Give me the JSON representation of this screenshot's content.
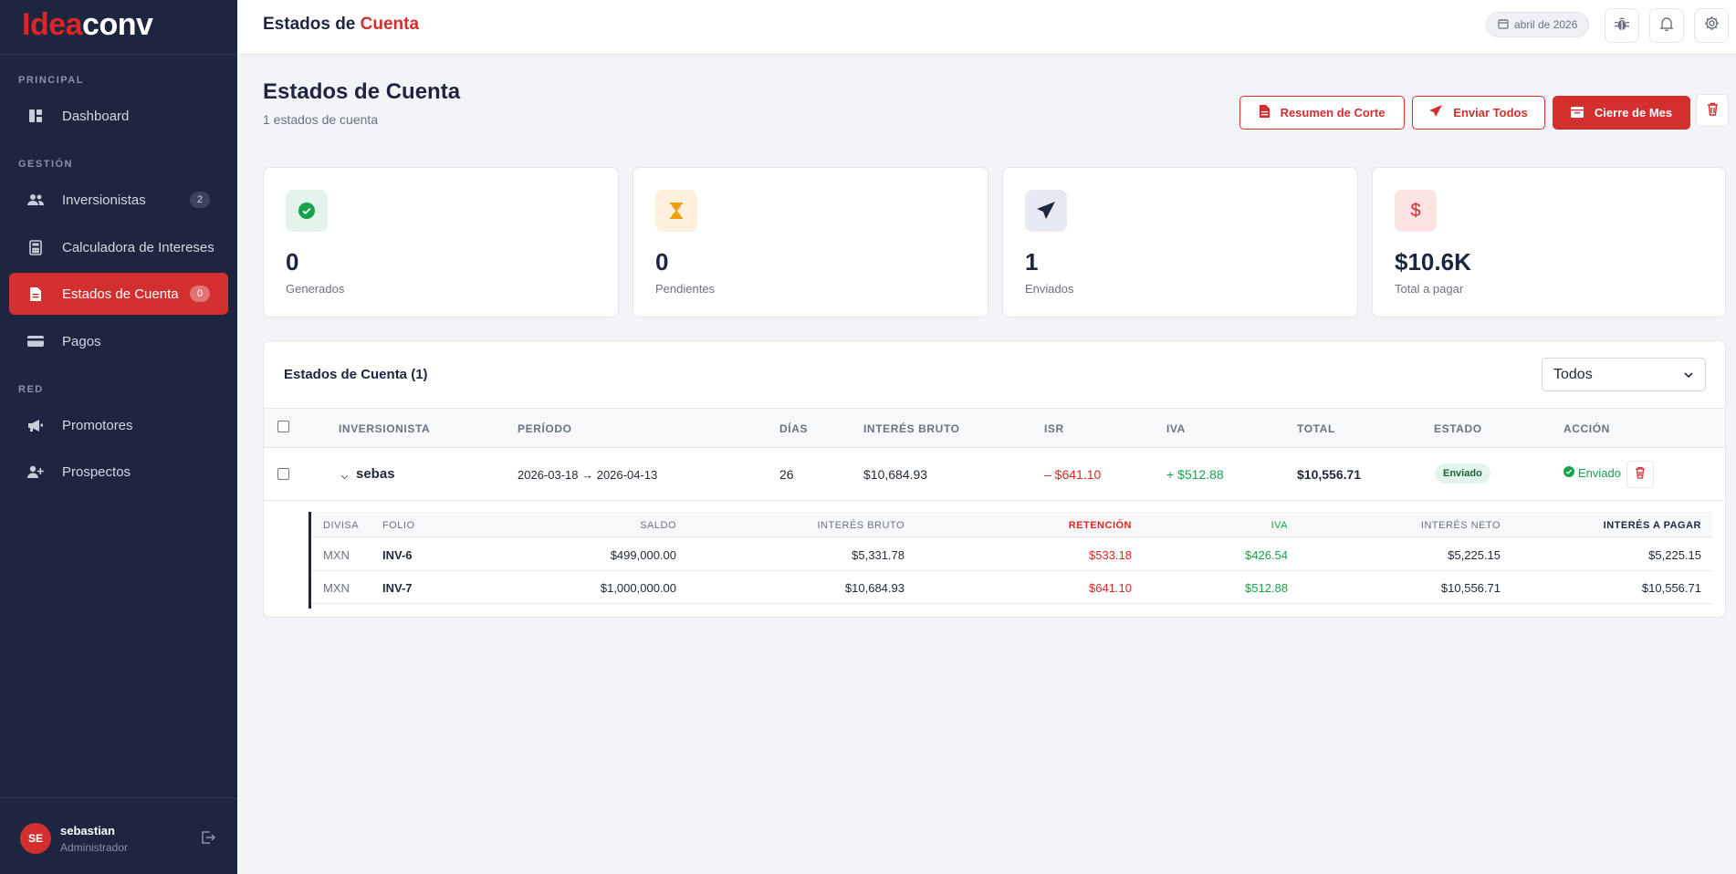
{
  "brand": {
    "part1": "Idea",
    "part2": "conv"
  },
  "sidebar": {
    "sections": [
      "PRINCIPAL",
      "GESTIÓN",
      "RED"
    ],
    "items": [
      {
        "label": "Dashboard",
        "icon": "dashboard-icon"
      },
      {
        "label": "Inversionistas",
        "icon": "users-icon",
        "badge": "2"
      },
      {
        "label": "Calculadora de Intereses",
        "icon": "calculator-icon"
      },
      {
        "label": "Estados de Cuenta",
        "icon": "document-icon",
        "badge": "0",
        "active": true
      },
      {
        "label": "Pagos",
        "icon": "card-icon"
      },
      {
        "label": "Promotores",
        "icon": "megaphone-icon"
      },
      {
        "label": "Prospectos",
        "icon": "user-plus-icon"
      }
    ],
    "user": {
      "initials": "SE",
      "name": "sebastian",
      "role": "Administrador"
    }
  },
  "topbar": {
    "title_part1": "Estados de ",
    "title_part2": "Cuenta",
    "date": "abril de 2026"
  },
  "header": {
    "title": "Estados de Cuenta",
    "subtitle": "1 estados de cuenta",
    "buttons": {
      "resumen": "Resumen de Corte",
      "enviar": "Enviar Todos",
      "cierre": "Cierre de Mes"
    }
  },
  "stats": [
    {
      "value": "0",
      "label": "Generados",
      "color": "#16a34a"
    },
    {
      "value": "0",
      "label": "Pendientes",
      "color": "#f59e0b"
    },
    {
      "value": "1",
      "label": "Enviados",
      "color": "#1e2540"
    },
    {
      "value": "$10.6K",
      "label": "Total a pagar",
      "color": "#dc2626"
    }
  ],
  "table": {
    "title": "Estados de Cuenta (1)",
    "filter": "Todos",
    "columns": [
      "INVERSIONISTA",
      "PERÍODO",
      "DÍAS",
      "INTERÉS BRUTO",
      "ISR",
      "IVA",
      "TOTAL",
      "ESTADO",
      "ACCIÓN"
    ],
    "row": {
      "investor": "sebas",
      "period": "2026-03-18 → 2026-04-13",
      "days": "26",
      "gross": "$10,684.93",
      "isr": "– $641.10",
      "iva": "+ $512.88",
      "total": "$10,556.71",
      "status": "Enviado",
      "action": "Enviado"
    },
    "detail": {
      "columns": [
        "DIVISA",
        "FOLIO",
        "SALDO",
        "INTERÉS BRUTO",
        "RETENCIÓN",
        "IVA",
        "INTERÉS NETO",
        "INTERÉS A PAGAR"
      ],
      "rows": [
        {
          "currency": "MXN",
          "folio": "INV-6",
          "balance": "$499,000.00",
          "gross": "$5,331.78",
          "retention": "$533.18",
          "iva": "$426.54",
          "net": "$5,225.15",
          "pay": "$5,225.15"
        },
        {
          "currency": "MXN",
          "folio": "INV-7",
          "balance": "$1,000,000.00",
          "gross": "$10,684.93",
          "retention": "$641.10",
          "iva": "$512.88",
          "net": "$10,556.71",
          "pay": "$10,556.71"
        }
      ]
    }
  }
}
